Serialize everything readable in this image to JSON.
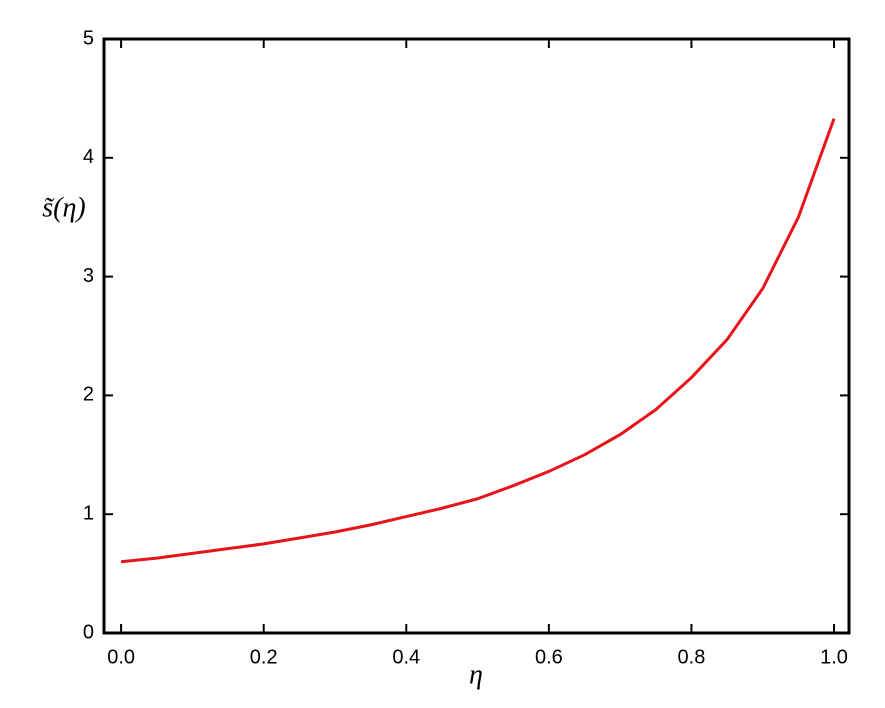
{
  "chart_data": {
    "type": "line",
    "x_label": "η",
    "y_label": "s̃(η)",
    "x": [
      0,
      0.05,
      0.1,
      0.15,
      0.2,
      0.25,
      0.3,
      0.35,
      0.4,
      0.45,
      0.5,
      0.55,
      0.6,
      0.65,
      0.7,
      0.75,
      0.8,
      0.85,
      0.9,
      0.95,
      1.0
    ],
    "series": [
      {
        "color": "#e8141a",
        "values": [
          0.6,
          0.63,
          0.67,
          0.71,
          0.75,
          0.8,
          0.85,
          0.91,
          0.98,
          1.05,
          1.13,
          1.24,
          1.36,
          1.5,
          1.67,
          1.88,
          2.15,
          2.47,
          2.9,
          3.5,
          4.33
        ]
      }
    ],
    "xlim": [
      -0.024,
      1.021
    ],
    "xticks": [
      {
        "value": 0,
        "label": "0.0"
      },
      0.2,
      0.4,
      0.6,
      0.8,
      {
        "value": 1,
        "label": "1.0"
      }
    ],
    "ylim": [
      0,
      5
    ],
    "yticks": [
      0,
      1,
      2,
      3,
      4,
      5
    ]
  }
}
